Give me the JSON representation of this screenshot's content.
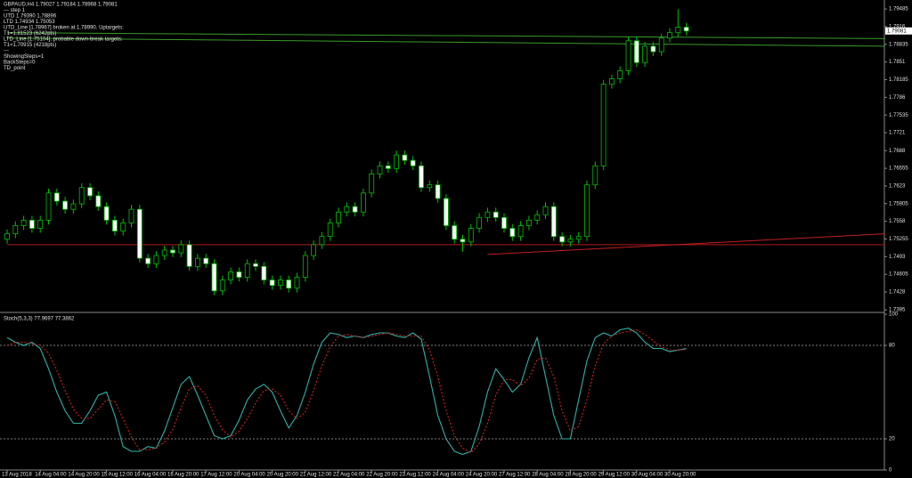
{
  "chart_data": [
    {
      "type": "candlestick",
      "annotations": [
        "GBPAUD,H4 1.79027 1.79184 1.78968 1.79081",
        "--- step 1",
        "UTD 1.79390 1.78896",
        "LTD 1.74934 1.75053",
        "UTD_Line [1.78967] broken at 1.78990. Uptargets:",
        "T1=1.81523 (6242pts)",
        "LTD_Line [1.75104], probable down-break targets:",
        "T1=1.70915 (4218pts)",
        "---",
        "ShowingSteps=1",
        "BackSteps=0",
        "TD_point"
      ],
      "up_color": "#000000",
      "down_color": "#ffffff",
      "outline_color": "#00c000",
      "ylim": [
        1.7392,
        1.7965
      ],
      "yticks": [
        1.79485,
        1.7916,
        1.78835,
        1.7851,
        1.78185,
        1.7786,
        1.77535,
        1.7721,
        1.7688,
        1.76555,
        1.7623,
        1.75905,
        1.7558,
        1.75255,
        1.7493,
        1.74605,
        1.7428,
        1.7395
      ],
      "last_price": 1.79081,
      "ohlc": [
        [
          1.7525,
          1.7543,
          1.7517,
          1.7535
        ],
        [
          1.7535,
          1.7558,
          1.7527,
          1.755
        ],
        [
          1.755,
          1.7568,
          1.7542,
          1.756
        ],
        [
          1.756,
          1.7568,
          1.7537,
          1.7545
        ],
        [
          1.7545,
          1.7568,
          1.7537,
          1.756
        ],
        [
          1.756,
          1.7618,
          1.7552,
          1.761
        ],
        [
          1.761,
          1.7618,
          1.7587,
          1.7595
        ],
        [
          1.7595,
          1.7603,
          1.7572,
          1.758
        ],
        [
          1.758,
          1.7598,
          1.7572,
          1.759
        ],
        [
          1.759,
          1.7628,
          1.7582,
          1.762
        ],
        [
          1.762,
          1.7628,
          1.7597,
          1.7605
        ],
        [
          1.7605,
          1.7613,
          1.7577,
          1.7585
        ],
        [
          1.7585,
          1.7593,
          1.7552,
          1.756
        ],
        [
          1.756,
          1.7568,
          1.7532,
          1.754
        ],
        [
          1.754,
          1.7563,
          1.7532,
          1.7555
        ],
        [
          1.7555,
          1.7588,
          1.7547,
          1.758
        ],
        [
          1.758,
          1.7588,
          1.7482,
          1.749
        ],
        [
          1.749,
          1.7498,
          1.7472,
          1.748
        ],
        [
          1.748,
          1.7503,
          1.7472,
          1.7495
        ],
        [
          1.7495,
          1.7513,
          1.7487,
          1.7505
        ],
        [
          1.7505,
          1.7513,
          1.7492,
          1.75
        ],
        [
          1.75,
          1.7523,
          1.7492,
          1.7515
        ],
        [
          1.7515,
          1.7523,
          1.7467,
          1.7475
        ],
        [
          1.7475,
          1.7498,
          1.7467,
          1.749
        ],
        [
          1.749,
          1.7498,
          1.7472,
          1.748
        ],
        [
          1.748,
          1.7488,
          1.7422,
          1.743
        ],
        [
          1.743,
          1.7458,
          1.7422,
          1.745
        ],
        [
          1.745,
          1.7473,
          1.7442,
          1.7465
        ],
        [
          1.7465,
          1.7473,
          1.7447,
          1.7455
        ],
        [
          1.7455,
          1.7488,
          1.7447,
          1.748
        ],
        [
          1.748,
          1.7488,
          1.7467,
          1.7475
        ],
        [
          1.7475,
          1.7483,
          1.7442,
          1.745
        ],
        [
          1.745,
          1.7458,
          1.7432,
          1.744
        ],
        [
          1.744,
          1.7458,
          1.7432,
          1.745
        ],
        [
          1.745,
          1.7458,
          1.7427,
          1.7435
        ],
        [
          1.7435,
          1.7463,
          1.7427,
          1.7455
        ],
        [
          1.7455,
          1.7503,
          1.7447,
          1.7495
        ],
        [
          1.7495,
          1.7523,
          1.7487,
          1.7515
        ],
        [
          1.7515,
          1.7538,
          1.7507,
          1.753
        ],
        [
          1.753,
          1.7563,
          1.7522,
          1.7555
        ],
        [
          1.7555,
          1.7583,
          1.7547,
          1.7575
        ],
        [
          1.7575,
          1.7593,
          1.7567,
          1.7585
        ],
        [
          1.7585,
          1.7593,
          1.7567,
          1.7575
        ],
        [
          1.7575,
          1.7618,
          1.7567,
          1.761
        ],
        [
          1.761,
          1.7653,
          1.7602,
          1.7645
        ],
        [
          1.7645,
          1.7668,
          1.7637,
          1.766
        ],
        [
          1.766,
          1.7668,
          1.7647,
          1.7655
        ],
        [
          1.7655,
          1.7688,
          1.7647,
          1.768
        ],
        [
          1.768,
          1.7688,
          1.7662,
          1.767
        ],
        [
          1.767,
          1.7678,
          1.7652,
          1.766
        ],
        [
          1.766,
          1.7668,
          1.7612,
          1.762
        ],
        [
          1.762,
          1.7633,
          1.7612,
          1.7625
        ],
        [
          1.7625,
          1.7633,
          1.7592,
          1.76
        ],
        [
          1.76,
          1.7608,
          1.7542,
          1.755
        ],
        [
          1.755,
          1.7558,
          1.7517,
          1.7525
        ],
        [
          1.7525,
          1.7533,
          1.7502,
          1.752
        ],
        [
          1.752,
          1.7553,
          1.7512,
          1.7545
        ],
        [
          1.7545,
          1.7573,
          1.7537,
          1.7565
        ],
        [
          1.7565,
          1.7583,
          1.7557,
          1.7575
        ],
        [
          1.7575,
          1.7583,
          1.7557,
          1.7565
        ],
        [
          1.7565,
          1.7573,
          1.7537,
          1.7545
        ],
        [
          1.7545,
          1.7553,
          1.7522,
          1.753
        ],
        [
          1.753,
          1.7558,
          1.7522,
          1.755
        ],
        [
          1.755,
          1.7568,
          1.7542,
          1.756
        ],
        [
          1.756,
          1.7578,
          1.7552,
          1.757
        ],
        [
          1.757,
          1.7593,
          1.7562,
          1.7585
        ],
        [
          1.7585,
          1.7593,
          1.7522,
          1.753
        ],
        [
          1.753,
          1.7538,
          1.7512,
          1.752
        ],
        [
          1.752,
          1.7533,
          1.7512,
          1.7525
        ],
        [
          1.7525,
          1.7538,
          1.7517,
          1.753
        ],
        [
          1.753,
          1.7633,
          1.7522,
          1.7625
        ],
        [
          1.7625,
          1.7668,
          1.7617,
          1.766
        ],
        [
          1.766,
          1.7818,
          1.7652,
          1.781
        ],
        [
          1.781,
          1.7828,
          1.7802,
          1.782
        ],
        [
          1.782,
          1.7843,
          1.7812,
          1.7835
        ],
        [
          1.7835,
          1.7898,
          1.7827,
          1.789
        ],
        [
          1.789,
          1.7898,
          1.7842,
          1.785
        ],
        [
          1.785,
          1.7888,
          1.7842,
          1.788
        ],
        [
          1.788,
          1.7888,
          1.7862,
          1.787
        ],
        [
          1.787,
          1.7903,
          1.7862,
          1.7895
        ],
        [
          1.7895,
          1.7913,
          1.7887,
          1.7905
        ],
        [
          1.7905,
          1.7948,
          1.7897,
          1.7915
        ],
        [
          1.7915,
          1.7923,
          1.79,
          1.7908
        ]
      ],
      "trend_lines": [
        {
          "from": [
            0,
            1.7905
          ],
          "to": [
            106,
            1.7894
          ],
          "color": "#3c9a2c"
        },
        {
          "from": [
            0,
            1.7895
          ],
          "to": [
            106,
            1.788
          ],
          "color": "#3c9a2c"
        },
        {
          "from": [
            0,
            1.7515
          ],
          "to": [
            106,
            1.7515
          ],
          "color": "#b01818"
        },
        {
          "from": [
            58,
            1.7497
          ],
          "to": [
            106,
            1.7535
          ],
          "color": "#c02020"
        }
      ]
    },
    {
      "type": "line",
      "title": "Stoch(5,3,3) 77.9697 77.3862",
      "categories": [
        "13 Aug 2018",
        null,
        null,
        null,
        "14 Aug 04:00",
        null,
        null,
        null,
        "14 Aug 20:00",
        null,
        null,
        null,
        "15 Aug 12:00",
        null,
        null,
        null,
        "16 Aug 04:00",
        null,
        null,
        null,
        "16 Aug 20:00",
        null,
        null,
        null,
        "17 Aug 12:00",
        null,
        null,
        null,
        "20 Aug 04:00",
        null,
        null,
        null,
        "20 Aug 20:00",
        null,
        null,
        null,
        "21 Aug 12:00",
        null,
        null,
        null,
        "22 Aug 04:00",
        null,
        null,
        null,
        "22 Aug 20:00",
        null,
        null,
        null,
        "23 Aug 12:00",
        null,
        null,
        null,
        "24 Aug 04:00",
        null,
        null,
        null,
        "24 Aug 20:00",
        null,
        null,
        null,
        "27 Aug 12:00",
        null,
        null,
        null,
        "28 Aug 04:00",
        null,
        null,
        null,
        "28 Aug 20:00",
        null,
        null,
        null,
        "29 Aug 12:00",
        null,
        null,
        null,
        "30 Aug 04:00",
        null,
        null,
        null,
        "30 Aug 20:00",
        null,
        null
      ],
      "ylim": [
        0,
        100
      ],
      "yticks": [
        0,
        20,
        80,
        100
      ],
      "levels": [
        20,
        80
      ],
      "series": [
        {
          "color": "#2fb3a8",
          "dash": false,
          "values": [
            85,
            82,
            80,
            82,
            78,
            65,
            50,
            38,
            30,
            30,
            38,
            48,
            50,
            35,
            15,
            12,
            12,
            15,
            14,
            25,
            40,
            55,
            60,
            48,
            35,
            22,
            20,
            22,
            32,
            45,
            52,
            55,
            50,
            38,
            27,
            35,
            50,
            68,
            82,
            88,
            87,
            85,
            86,
            85,
            87,
            88,
            88,
            86,
            85,
            88,
            84,
            60,
            35,
            20,
            12,
            10,
            12,
            28,
            50,
            65,
            58,
            50,
            55,
            72,
            85,
            60,
            35,
            20,
            20,
            45,
            70,
            85,
            88,
            86,
            90,
            91,
            88,
            82,
            78,
            78,
            76,
            77,
            77.97
          ]
        },
        {
          "color": "#d02020",
          "dash": true,
          "values": [
            80,
            82,
            82,
            81,
            80,
            75,
            64,
            51,
            39,
            33,
            33,
            39,
            45,
            44,
            33,
            21,
            13,
            13,
            14,
            18,
            26,
            40,
            52,
            54,
            48,
            35,
            26,
            21,
            25,
            33,
            43,
            51,
            52,
            48,
            38,
            33,
            37,
            51,
            67,
            79,
            86,
            87,
            86,
            85,
            86,
            87,
            88,
            87,
            86,
            86,
            86,
            77,
            60,
            38,
            22,
            14,
            11,
            17,
            30,
            48,
            58,
            58,
            54,
            59,
            71,
            72,
            60,
            38,
            25,
            28,
            45,
            67,
            81,
            86,
            88,
            89,
            90,
            87,
            83,
            79,
            77,
            77,
            77.39
          ]
        }
      ]
    }
  ]
}
